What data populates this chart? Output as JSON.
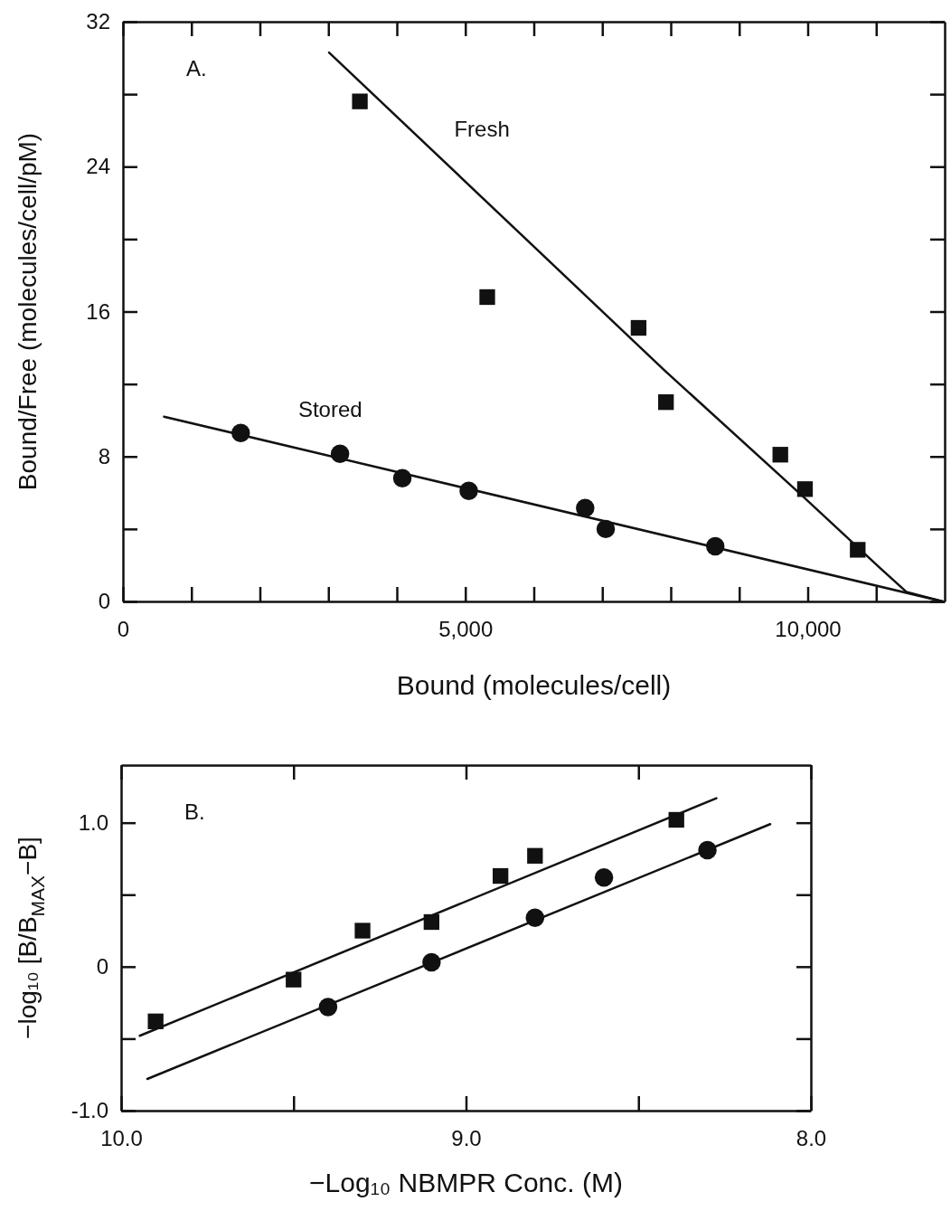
{
  "chart_data": [
    {
      "type": "scatter",
      "xlabel": "Bound (molecules/cell)",
      "ylabel": "Bound/Free (molecules/cell/pM)",
      "xlim": [
        0,
        12000
      ],
      "ylim": [
        0,
        32
      ],
      "xticks": [
        0,
        {
          "value": 1000,
          "label": null
        },
        {
          "value": 2000,
          "label": null
        },
        {
          "value": 3000,
          "label": null
        },
        {
          "value": 4000,
          "label": null
        },
        {
          "value": 5000,
          "label": "5,000"
        },
        {
          "value": 6000,
          "label": null
        },
        {
          "value": 7000,
          "label": null
        },
        {
          "value": 8000,
          "label": null
        },
        {
          "value": 9000,
          "label": null
        },
        {
          "value": 10000,
          "label": "10,000"
        },
        {
          "value": 11000,
          "label": null
        }
      ],
      "yticks": [
        0,
        {
          "value": 4,
          "label": null
        },
        8,
        {
          "value": 12,
          "label": null
        },
        16,
        {
          "value": 20,
          "label": null
        },
        24,
        {
          "value": 28,
          "label": null
        },
        32
      ],
      "grid": false,
      "annotations": [
        "A."
      ],
      "series": [
        {
          "type": "scatter",
          "marker": "square",
          "color": "#111111",
          "x": [
            3460,
            5320,
            7530,
            7930,
            9600,
            9960,
            10730
          ],
          "values": [
            27.6,
            16.8,
            15.1,
            11.0,
            8.1,
            6.2,
            2.85
          ]
        },
        {
          "type": "line",
          "name": "Fresh",
          "marker": "none",
          "line_style": "solid",
          "color": "#111111",
          "x": [
            3010,
            7910,
            9930,
            11050,
            11440,
            11970
          ],
          "values": [
            30.3,
            12.75,
            5.8,
            1.87,
            0.53,
            0
          ]
        },
        {
          "type": "scatter",
          "marker": "circle",
          "color": "#111111",
          "x": [
            1720,
            3170,
            4080,
            5050,
            6750,
            7050,
            8650
          ],
          "values": [
            9.3,
            8.15,
            6.8,
            6.1,
            5.15,
            4.0,
            3.05
          ]
        },
        {
          "type": "line",
          "name": "Stored",
          "marker": "none",
          "line_style": "solid",
          "color": "#111111",
          "x": [
            600,
            11970
          ],
          "values": [
            10.2,
            0
          ]
        }
      ]
    },
    {
      "type": "scatter",
      "xlabel": "−Log₁₀ NBMPR Conc. (M)",
      "ylabel": "−log₁₀ [B/B$_{MAX}$−B]",
      "xlim": [
        10,
        8
      ],
      "ylim": [
        -1,
        1.4
      ],
      "xticks": [
        {
          "value": 10,
          "label": "10.0"
        },
        {
          "value": 9.5,
          "label": null
        },
        {
          "value": 9,
          "label": "9.0"
        },
        {
          "value": 8.5,
          "label": null
        },
        {
          "value": 8,
          "label": "8.0"
        }
      ],
      "yticks": [
        {
          "value": -1,
          "label": "-1.0"
        },
        {
          "value": -0.5,
          "label": null
        },
        0,
        {
          "value": 0.5,
          "label": null
        },
        {
          "value": 1,
          "label": "1.0"
        }
      ],
      "grid": false,
      "annotations": [
        "B."
      ],
      "series": [
        {
          "type": "scatter",
          "marker": "square",
          "color": "#111111",
          "x": [
            9.9,
            9.5,
            9.3,
            9.1,
            8.9,
            8.8,
            8.39
          ],
          "values": [
            -0.38,
            -0.09,
            0.25,
            0.31,
            0.63,
            0.77,
            1.02
          ]
        },
        {
          "type": "line",
          "marker": "none",
          "line_style": "solid",
          "color": "#111111",
          "x": [
            9.946,
            8.274
          ],
          "values": [
            -0.48,
            1.17
          ]
        },
        {
          "type": "scatter",
          "marker": "circle",
          "color": "#111111",
          "x": [
            9.4,
            9.1,
            8.8,
            8.6,
            8.3
          ],
          "values": [
            -0.28,
            0.03,
            0.34,
            0.62,
            0.81
          ]
        },
        {
          "type": "line",
          "marker": "none",
          "line_style": "solid",
          "color": "#111111",
          "x": [
            9.924,
            8.118
          ],
          "values": [
            -0.78,
            0.99
          ]
        }
      ]
    }
  ]
}
